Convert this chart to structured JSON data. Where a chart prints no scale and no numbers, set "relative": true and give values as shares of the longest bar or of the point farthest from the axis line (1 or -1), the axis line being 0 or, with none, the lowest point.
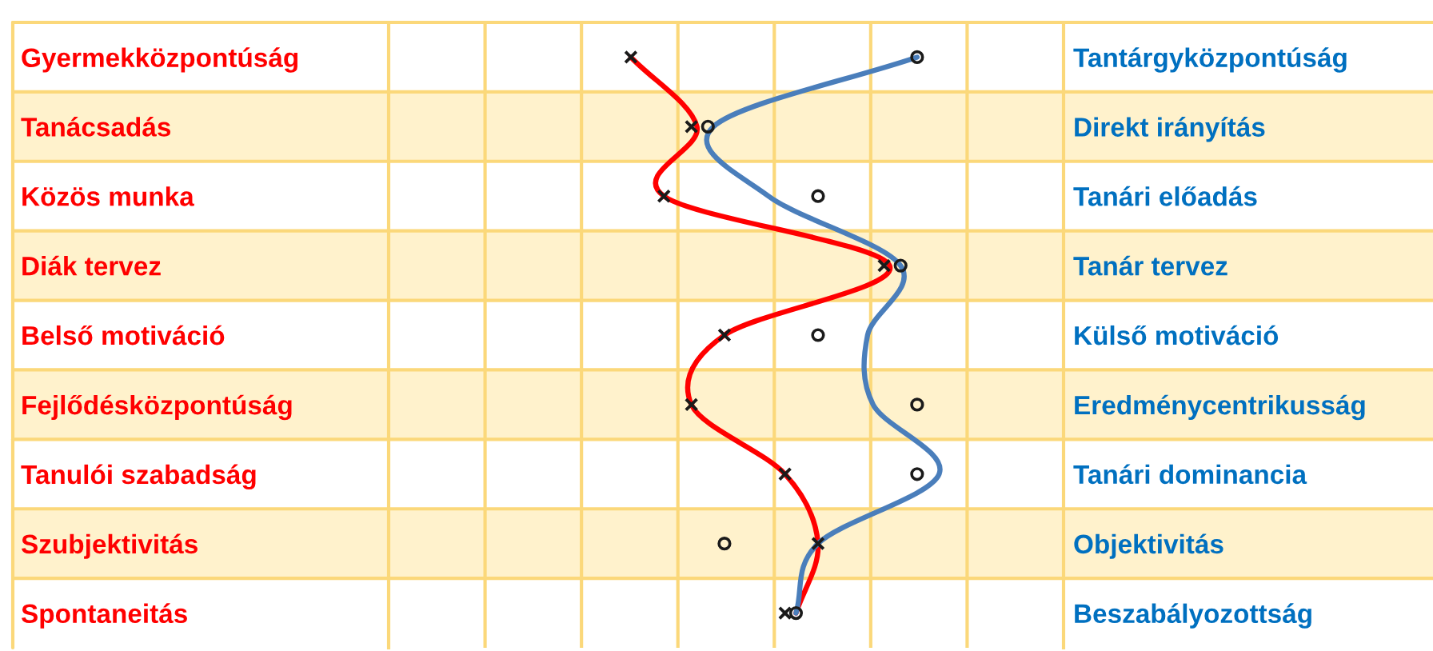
{
  "chart_data": {
    "type": "scatter",
    "orientation": "horizontal",
    "relative": true,
    "grid": true,
    "categories": [
      "Gyermekközpontúság",
      "Tanácsadás",
      "Közös munka",
      "Diák tervez",
      "Belső motiváció",
      "Fejlődésközpontúság",
      "Tanulói szabadság",
      "Szubjektivitás",
      "Spontaneitás"
    ],
    "y2_categories": [
      "Tantárgyközpontúság",
      "Direkt irányítás",
      "Tanári előadás",
      "Tanár tervez",
      "Külső motiváció",
      "Eredménycentrikusság",
      "Tanári dominancia",
      "Objektivitás",
      "Beszabályozottság"
    ],
    "bands": [
      {
        "axis": "y",
        "from": "Tanácsadás",
        "to": "Tanácsadás",
        "color": "#fff2cc"
      },
      {
        "axis": "y",
        "from": "Diák tervez",
        "to": "Diák tervez",
        "color": "#fff2cc"
      },
      {
        "axis": "y",
        "from": "Fejlődésközpontúság",
        "to": "Fejlődésközpontúság",
        "color": "#fff2cc"
      },
      {
        "axis": "y",
        "from": "Szubjektivitás",
        "to": "Szubjektivitás",
        "color": "#fff2cc"
      }
    ],
    "series": [
      {
        "type": "line",
        "color": "#ff0000",
        "values": [
          0.44,
          0.56,
          0.5,
          0.91,
          0.61,
          0.55,
          0.72,
          0.78,
          0.74
        ]
      },
      {
        "type": "line",
        "color": "#4a7ebb",
        "values": [
          0.96,
          0.59,
          0.69,
          0.93,
          0.87,
          0.88,
          1.0,
          0.78,
          0.74
        ]
      },
      {
        "marker": "cross",
        "color": "#1a1a1a",
        "values": [
          0.44,
          0.55,
          0.5,
          0.9,
          0.61,
          0.55,
          0.72,
          0.78,
          0.72
        ]
      },
      {
        "marker": "circle",
        "color": "#1a1a1a",
        "values": [
          0.96,
          0.58,
          0.78,
          0.93,
          0.78,
          0.96,
          0.96,
          0.61,
          0.74
        ]
      }
    ]
  }
}
